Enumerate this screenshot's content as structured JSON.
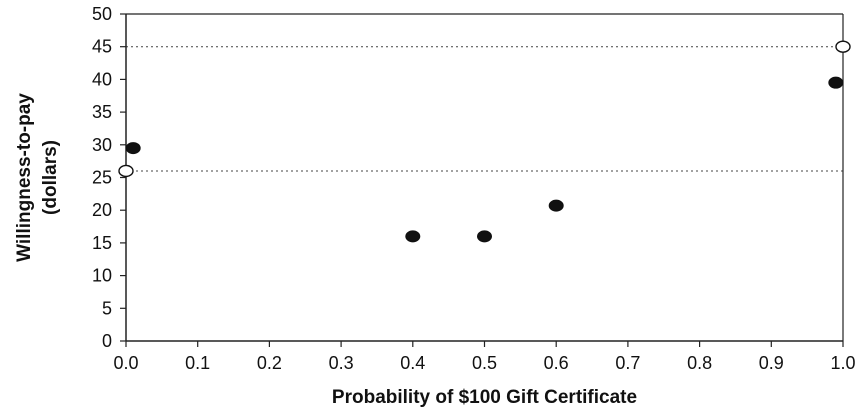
{
  "chart_data": {
    "type": "scatter",
    "title": "",
    "xlabel": "Probability of $100 Gift Certificate",
    "ylabel": [
      "Willingness-to-pay",
      "(dollars)"
    ],
    "xlim": [
      0.0,
      1.0
    ],
    "ylim": [
      0,
      50
    ],
    "x_ticks": [
      "0.0",
      "0.1",
      "0.2",
      "0.3",
      "0.4",
      "0.5",
      "0.6",
      "0.7",
      "0.8",
      "0.9",
      "1.0"
    ],
    "y_ticks": [
      "0",
      "5",
      "10",
      "15",
      "20",
      "25",
      "30",
      "35",
      "40",
      "45",
      "50"
    ],
    "grid": false,
    "legend": "none",
    "series": [
      {
        "marker": "filled-circle",
        "color": "#111111",
        "points": [
          {
            "x": 0.01,
            "y": 29.5
          },
          {
            "x": 0.4,
            "y": 16
          },
          {
            "x": 0.5,
            "y": 16
          },
          {
            "x": 0.6,
            "y": 20.7
          },
          {
            "x": 0.99,
            "y": 39.5
          }
        ]
      },
      {
        "marker": "open-circle",
        "color": "#111111",
        "points": [
          {
            "x": 0.0,
            "y": 26
          },
          {
            "x": 1.0,
            "y": 45
          }
        ]
      }
    ],
    "reference_lines": [
      {
        "y": 45,
        "style": "dotted"
      },
      {
        "y": 26,
        "style": "dotted"
      }
    ]
  }
}
